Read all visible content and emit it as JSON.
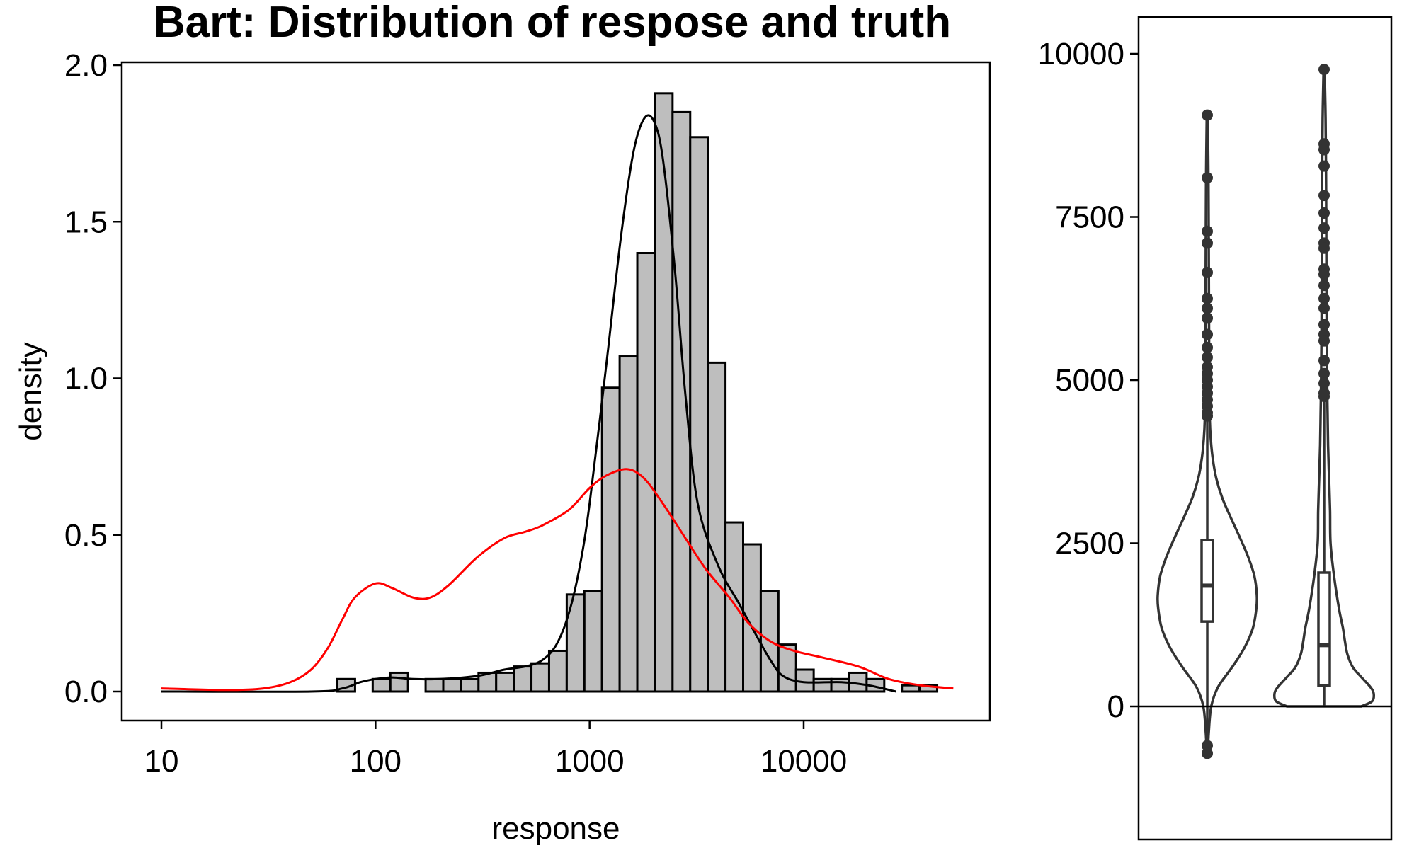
{
  "chart_data": [
    {
      "type": "bar",
      "title": "Bart: Distribution of respose and truth",
      "xlabel": "response",
      "ylabel": "density",
      "x_scale": "log10",
      "xlim": [
        10,
        50000
      ],
      "ylim": [
        0,
        2.0
      ],
      "x_ticks": [
        {
          "value": 10,
          "label": "10"
        },
        {
          "value": 100,
          "label": "100"
        },
        {
          "value": 1000,
          "label": "1000"
        },
        {
          "value": 10000,
          "label": "10000"
        }
      ],
      "y_ticks": [
        {
          "value": 0,
          "label": "0.0"
        },
        {
          "value": 0.5,
          "label": "0.5"
        },
        {
          "value": 1.0,
          "label": "1.0"
        },
        {
          "value": 1.5,
          "label": "1.5"
        },
        {
          "value": 2.0,
          "label": "2.0"
        }
      ],
      "histogram": {
        "log_bin_start": 1.822,
        "log_bin_width": 0.0824,
        "densities": [
          0.04,
          0.0,
          0.04,
          0.06,
          0.0,
          0.04,
          0.04,
          0.04,
          0.06,
          0.06,
          0.08,
          0.09,
          0.13,
          0.31,
          0.32,
          0.97,
          1.07,
          1.4,
          1.91,
          1.85,
          1.77,
          1.05,
          0.54,
          0.47,
          0.32,
          0.15,
          0.07,
          0.04,
          0.04,
          0.06,
          0.04,
          0.0,
          0.02,
          0.02
        ]
      },
      "series": [
        {
          "style": "black",
          "x": [
            10,
            50,
            70,
            85,
            100,
            120,
            150,
            200,
            300,
            400,
            500,
            600,
            700,
            800,
            900,
            1000,
            1200,
            1400,
            1600,
            1800,
            2000,
            2200,
            2500,
            2800,
            3200,
            4000,
            5000,
            6000,
            7000,
            8000,
            10000,
            15000,
            20000,
            27000
          ],
          "y": [
            0,
            0,
            0.01,
            0.03,
            0.04,
            0.045,
            0.04,
            0.04,
            0.05,
            0.07,
            0.08,
            0.1,
            0.15,
            0.25,
            0.4,
            0.6,
            1.05,
            1.45,
            1.72,
            1.83,
            1.82,
            1.7,
            1.35,
            0.95,
            0.6,
            0.4,
            0.28,
            0.18,
            0.1,
            0.05,
            0.03,
            0.03,
            0.02,
            0
          ]
        },
        {
          "style": "red",
          "x": [
            10,
            20,
            30,
            40,
            50,
            60,
            70,
            80,
            100,
            120,
            150,
            180,
            220,
            300,
            400,
            500,
            600,
            800,
            1000,
            1200,
            1500,
            1800,
            2200,
            2800,
            3500,
            4500,
            5500,
            7000,
            9000,
            12000,
            18000,
            25000,
            35000,
            50000
          ],
          "y": [
            0.01,
            0.005,
            0.01,
            0.03,
            0.07,
            0.14,
            0.23,
            0.3,
            0.345,
            0.33,
            0.3,
            0.3,
            0.34,
            0.43,
            0.49,
            0.51,
            0.53,
            0.58,
            0.65,
            0.69,
            0.71,
            0.68,
            0.6,
            0.49,
            0.39,
            0.3,
            0.22,
            0.16,
            0.13,
            0.11,
            0.08,
            0.04,
            0.02,
            0.01
          ]
        }
      ]
    },
    {
      "type": "violin",
      "ylim": [
        -2000,
        10500
      ],
      "y_ticks": [
        {
          "value": 0,
          "label": "0"
        },
        {
          "value": 2500,
          "label": "2500"
        },
        {
          "value": 5000,
          "label": "5000"
        },
        {
          "value": 7500,
          "label": "7500"
        },
        {
          "value": 10000,
          "label": "10000"
        }
      ],
      "groups": [
        {
          "box": {
            "q1": 1300,
            "median": 1850,
            "q3": 2550,
            "whisker_low": -620,
            "whisker_high": 4450
          },
          "range": [
            -720,
            9060
          ],
          "profile_y": [
            -720,
            -400,
            0,
            300,
            600,
            900,
            1200,
            1500,
            1700,
            2000,
            2300,
            2600,
            2900,
            3200,
            3500,
            3800,
            4100,
            4400,
            5000,
            6000,
            7000,
            8000,
            9060
          ],
          "profile_w": [
            0.01,
            0.03,
            0.08,
            0.22,
            0.5,
            0.75,
            0.92,
            0.99,
            1.0,
            0.95,
            0.82,
            0.65,
            0.47,
            0.3,
            0.18,
            0.11,
            0.07,
            0.05,
            0.04,
            0.035,
            0.03,
            0.025,
            0.01
          ],
          "outliers": [
            9060,
            8100,
            7280,
            7100,
            6650,
            6250,
            6100,
            5950,
            5700,
            5500,
            5350,
            5200,
            5100,
            5000,
            4900,
            4800,
            4700,
            4600,
            4500,
            4450,
            -600,
            -720
          ]
        },
        {
          "box": {
            "q1": 320,
            "median": 940,
            "q3": 2050,
            "whisker_low": 0,
            "whisker_high": 4700
          },
          "range": [
            0,
            9780
          ],
          "profile_y": [
            0,
            80,
            200,
            300,
            450,
            600,
            800,
            1000,
            1200,
            1500,
            2000,
            2500,
            3000,
            3500,
            4000,
            4500,
            5000,
            6000,
            7000,
            8000,
            9000,
            9780
          ],
          "profile_w": [
            0.75,
            0.97,
            1.0,
            0.93,
            0.75,
            0.58,
            0.47,
            0.42,
            0.38,
            0.3,
            0.2,
            0.13,
            0.12,
            0.1,
            0.08,
            0.07,
            0.06,
            0.05,
            0.045,
            0.04,
            0.03,
            0.01
          ],
          "outliers": [
            9760,
            8620,
            8530,
            8280,
            7830,
            7560,
            7330,
            7100,
            7020,
            6700,
            6620,
            6450,
            6250,
            6100,
            5850,
            5700,
            5600,
            5300,
            5100,
            4950,
            4800,
            4750
          ]
        }
      ]
    }
  ]
}
